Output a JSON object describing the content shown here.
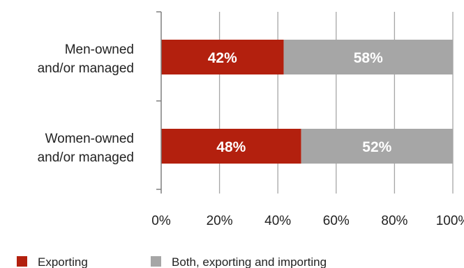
{
  "chart_data": {
    "type": "bar",
    "orientation": "horizontal",
    "stacked": true,
    "categories": [
      "Men-owned\nand/or managed",
      "Women-owned\nand/or managed"
    ],
    "series": [
      {
        "name": "Exporting",
        "values": [
          42,
          48
        ],
        "labels": [
          "42%",
          "48%"
        ],
        "color": "#b3200e"
      },
      {
        "name": "Both, exporting and importing",
        "values": [
          58,
          52
        ],
        "labels": [
          "58%",
          "52%"
        ],
        "color": "#a6a6a6"
      }
    ],
    "xlim": [
      0,
      100
    ],
    "xticks": [
      0,
      20,
      40,
      60,
      80,
      100
    ],
    "xtick_labels": [
      "0%",
      "20%",
      "40%",
      "60%",
      "80%",
      "100%"
    ],
    "grid": "vertical",
    "legend": "bottom"
  }
}
